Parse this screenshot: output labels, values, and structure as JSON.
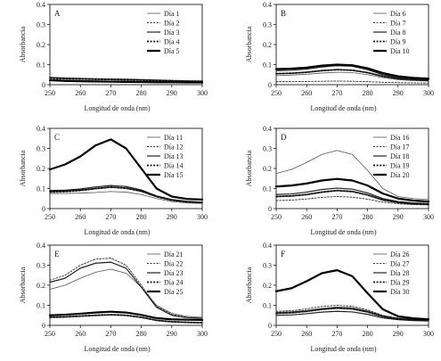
{
  "chart_data": [
    {
      "type": "line",
      "panel_label": "A",
      "ylabel": "Absorbancia",
      "xlabel": "Longitud de onda (nm)",
      "xlim": [
        250,
        300
      ],
      "ylim": [
        0,
        0.4
      ],
      "xticks": [
        "250",
        "260",
        "270",
        "280",
        "290",
        "300"
      ],
      "yticks": [
        "0",
        "0.1",
        "0.2",
        "0.3",
        "0.4"
      ],
      "legend_position": "top-right",
      "x": [
        250,
        255,
        260,
        265,
        270,
        275,
        280,
        285,
        290,
        295,
        300
      ],
      "series": [
        {
          "name": "Día 1",
          "style": "thin",
          "values": [
            0.02,
            0.017,
            0.015,
            0.014,
            0.013,
            0.012,
            0.011,
            0.01,
            0.01,
            0.009,
            0.009
          ]
        },
        {
          "name": "Día 2",
          "style": "dotted-thin",
          "values": [
            0.03,
            0.028,
            0.026,
            0.025,
            0.024,
            0.022,
            0.02,
            0.018,
            0.016,
            0.015,
            0.014
          ]
        },
        {
          "name": "Día 3",
          "style": "medium",
          "values": [
            0.025,
            0.022,
            0.02,
            0.018,
            0.017,
            0.016,
            0.015,
            0.014,
            0.013,
            0.012,
            0.012
          ]
        },
        {
          "name": "Día 4",
          "style": "dotted-thick",
          "values": [
            0.035,
            0.032,
            0.03,
            0.028,
            0.027,
            0.026,
            0.024,
            0.022,
            0.02,
            0.018,
            0.017
          ]
        },
        {
          "name": "Día 5",
          "style": "thick",
          "values": [
            0.022,
            0.019,
            0.017,
            0.016,
            0.015,
            0.014,
            0.013,
            0.012,
            0.012,
            0.011,
            0.011
          ]
        }
      ]
    },
    {
      "type": "line",
      "panel_label": "B",
      "ylabel": "Absorbancia",
      "xlabel": "Longitud de onda (nm)",
      "xlim": [
        250,
        300
      ],
      "ylim": [
        0,
        0.4
      ],
      "xticks": [
        "250",
        "260",
        "270",
        "280",
        "290",
        "300"
      ],
      "yticks": [
        "0",
        "0.1",
        "0.2",
        "0.3",
        "0.4"
      ],
      "legend_position": "top-right",
      "x": [
        250,
        255,
        260,
        265,
        270,
        275,
        280,
        285,
        290,
        295,
        300
      ],
      "series": [
        {
          "name": "Día 6",
          "style": "thin",
          "values": [
            0.045,
            0.048,
            0.052,
            0.058,
            0.062,
            0.06,
            0.05,
            0.035,
            0.025,
            0.02,
            0.018
          ]
        },
        {
          "name": "Día 7",
          "style": "dotted-thin",
          "values": [
            0.015,
            0.015,
            0.016,
            0.017,
            0.018,
            0.017,
            0.015,
            0.012,
            0.01,
            0.009,
            0.008
          ]
        },
        {
          "name": "Día 8",
          "style": "medium",
          "values": [
            0.07,
            0.072,
            0.078,
            0.088,
            0.095,
            0.092,
            0.075,
            0.05,
            0.035,
            0.028,
            0.025
          ]
        },
        {
          "name": "Día 9",
          "style": "dotted-thick",
          "values": [
            0.055,
            0.057,
            0.062,
            0.07,
            0.075,
            0.072,
            0.06,
            0.042,
            0.03,
            0.025,
            0.022
          ]
        },
        {
          "name": "Día 10",
          "style": "thick",
          "values": [
            0.078,
            0.08,
            0.085,
            0.095,
            0.1,
            0.097,
            0.082,
            0.058,
            0.042,
            0.034,
            0.03
          ]
        }
      ]
    },
    {
      "type": "line",
      "panel_label": "C",
      "ylabel": "Absorbancia",
      "xlabel": "Longitud de onda (nm)",
      "xlim": [
        250,
        300
      ],
      "ylim": [
        0,
        0.4
      ],
      "xticks": [
        "250",
        "260",
        "270",
        "280",
        "290",
        "300"
      ],
      "yticks": [
        "0",
        "0.1",
        "0.2",
        "0.3",
        "0.4"
      ],
      "legend_position": "top-right",
      "x": [
        250,
        255,
        260,
        265,
        270,
        275,
        280,
        285,
        290,
        295,
        300
      ],
      "series": [
        {
          "name": "Día 11",
          "style": "thin",
          "values": [
            0.075,
            0.075,
            0.077,
            0.08,
            0.085,
            0.082,
            0.07,
            0.05,
            0.035,
            0.028,
            0.025
          ]
        },
        {
          "name": "Día 12",
          "style": "dotted-thin",
          "values": [
            0.08,
            0.082,
            0.088,
            0.098,
            0.105,
            0.1,
            0.085,
            0.058,
            0.04,
            0.032,
            0.028
          ]
        },
        {
          "name": "Día 13",
          "style": "medium",
          "values": [
            0.09,
            0.092,
            0.098,
            0.108,
            0.115,
            0.11,
            0.093,
            0.063,
            0.045,
            0.036,
            0.032
          ]
        },
        {
          "name": "Día 14",
          "style": "dotted-thick",
          "values": [
            0.085,
            0.087,
            0.092,
            0.1,
            0.107,
            0.102,
            0.087,
            0.06,
            0.042,
            0.034,
            0.03
          ]
        },
        {
          "name": "Día 15",
          "style": "thick",
          "values": [
            0.195,
            0.22,
            0.26,
            0.315,
            0.345,
            0.3,
            0.2,
            0.1,
            0.06,
            0.048,
            0.045
          ]
        }
      ]
    },
    {
      "type": "line",
      "panel_label": "D",
      "ylabel": "Absorbancia",
      "xlabel": "Longitud de onda (nm)",
      "xlim": [
        250,
        300
      ],
      "ylim": [
        0,
        0.4
      ],
      "xticks": [
        "250",
        "260",
        "270",
        "280",
        "290",
        "300"
      ],
      "yticks": [
        "0",
        "0.1",
        "0.2",
        "0.3",
        "0.4"
      ],
      "legend_position": "top-right",
      "x": [
        250,
        255,
        260,
        265,
        270,
        275,
        280,
        285,
        290,
        295,
        300
      ],
      "series": [
        {
          "name": "Día 16",
          "style": "thin",
          "values": [
            0.175,
            0.195,
            0.23,
            0.27,
            0.29,
            0.27,
            0.19,
            0.1,
            0.06,
            0.05,
            0.045
          ]
        },
        {
          "name": "Día 17",
          "style": "dotted-thin",
          "values": [
            0.04,
            0.042,
            0.048,
            0.056,
            0.06,
            0.057,
            0.047,
            0.032,
            0.024,
            0.02,
            0.018
          ]
        },
        {
          "name": "Día 18",
          "style": "medium",
          "values": [
            0.07,
            0.073,
            0.082,
            0.095,
            0.102,
            0.097,
            0.078,
            0.05,
            0.035,
            0.028,
            0.025
          ]
        },
        {
          "name": "Día 19",
          "style": "dotted-thick",
          "values": [
            0.06,
            0.063,
            0.07,
            0.082,
            0.09,
            0.085,
            0.068,
            0.043,
            0.03,
            0.024,
            0.022
          ]
        },
        {
          "name": "Día 20",
          "style": "thick",
          "values": [
            0.11,
            0.115,
            0.125,
            0.14,
            0.148,
            0.14,
            0.115,
            0.075,
            0.05,
            0.04,
            0.035
          ]
        }
      ]
    },
    {
      "type": "line",
      "panel_label": "E",
      "ylabel": "Absorbancia",
      "xlabel": "Longitud de onda (nm)",
      "xlim": [
        250,
        300
      ],
      "ylim": [
        0,
        0.4
      ],
      "xticks": [
        "250",
        "260",
        "270",
        "280",
        "290",
        "300"
      ],
      "yticks": [
        "0",
        "0.1",
        "0.2",
        "0.3",
        "0.4"
      ],
      "legend_position": "top-right",
      "x": [
        250,
        255,
        260,
        265,
        270,
        275,
        280,
        285,
        290,
        295,
        300
      ],
      "series": [
        {
          "name": "Día 21",
          "style": "thin",
          "values": [
            0.18,
            0.2,
            0.235,
            0.265,
            0.28,
            0.26,
            0.19,
            0.1,
            0.06,
            0.045,
            0.04
          ]
        },
        {
          "name": "Día 22",
          "style": "dotted-thin",
          "values": [
            0.225,
            0.25,
            0.3,
            0.33,
            0.335,
            0.3,
            0.2,
            0.095,
            0.055,
            0.04,
            0.035
          ]
        },
        {
          "name": "Día 23",
          "style": "medium",
          "values": [
            0.215,
            0.235,
            0.285,
            0.31,
            0.315,
            0.285,
            0.19,
            0.09,
            0.05,
            0.038,
            0.035
          ]
        },
        {
          "name": "Día 24",
          "style": "dotted-thick",
          "values": [
            0.04,
            0.042,
            0.046,
            0.05,
            0.053,
            0.05,
            0.04,
            0.025,
            0.018,
            0.015,
            0.013
          ]
        },
        {
          "name": "Día 25",
          "style": "thick",
          "values": [
            0.05,
            0.053,
            0.058,
            0.064,
            0.068,
            0.064,
            0.052,
            0.036,
            0.03,
            0.028,
            0.027
          ]
        }
      ]
    },
    {
      "type": "line",
      "panel_label": "F",
      "ylabel": "Absorbancia",
      "xlabel": "Longitud de onda (nm)",
      "xlim": [
        250,
        300
      ],
      "ylim": [
        0,
        0.4
      ],
      "xticks": [
        "250",
        "260",
        "270",
        "280",
        "290",
        "300"
      ],
      "yticks": [
        "0",
        "0.1",
        "0.2",
        "0.3",
        "0.4"
      ],
      "legend_position": "top-right",
      "x": [
        250,
        255,
        260,
        265,
        270,
        275,
        280,
        285,
        290,
        295,
        300
      ],
      "series": [
        {
          "name": "Día 26",
          "style": "thin",
          "values": [
            0.065,
            0.068,
            0.075,
            0.085,
            0.092,
            0.088,
            0.072,
            0.048,
            0.035,
            0.03,
            0.028
          ]
        },
        {
          "name": "Día 27",
          "style": "dotted-thin",
          "values": [
            0.07,
            0.073,
            0.082,
            0.094,
            0.1,
            0.095,
            0.077,
            0.05,
            0.036,
            0.031,
            0.029
          ]
        },
        {
          "name": "Día 28",
          "style": "medium",
          "values": [
            0.05,
            0.052,
            0.058,
            0.066,
            0.07,
            0.067,
            0.055,
            0.037,
            0.028,
            0.024,
            0.022
          ]
        },
        {
          "name": "Día 29",
          "style": "dotted-thick",
          "values": [
            0.06,
            0.063,
            0.07,
            0.08,
            0.086,
            0.082,
            0.067,
            0.044,
            0.032,
            0.027,
            0.025
          ]
        },
        {
          "name": "Día 30",
          "style": "thick",
          "values": [
            0.17,
            0.185,
            0.22,
            0.26,
            0.275,
            0.245,
            0.16,
            0.08,
            0.045,
            0.035,
            0.03
          ]
        }
      ]
    }
  ]
}
